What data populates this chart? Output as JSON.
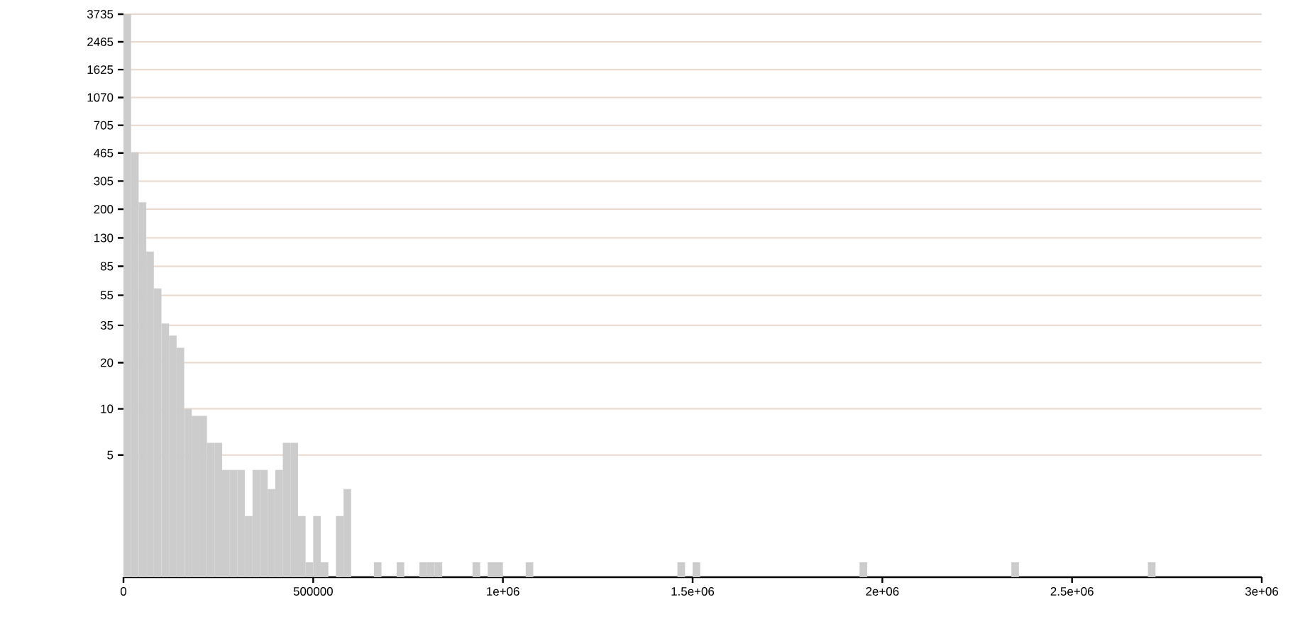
{
  "chart_data": {
    "type": "histogram",
    "color": "#cccccc",
    "grid": "y",
    "log": true,
    "bins": [
      0,
      20000,
      40000,
      60000,
      80000,
      100000,
      120000,
      140000,
      160000,
      180000,
      200000,
      220000,
      240000,
      260000,
      280000,
      300000,
      320000,
      340000,
      360000,
      380000,
      400000,
      420000,
      440000,
      460000,
      480000,
      500000,
      520000,
      540000,
      560000,
      580000,
      600000,
      620000,
      640000,
      660000,
      680000,
      700000,
      720000,
      740000,
      760000,
      780000,
      800000,
      820000,
      840000,
      860000,
      880000,
      900000,
      920000,
      940000,
      960000,
      980000,
      1000000,
      1020000,
      1040000,
      1060000,
      1080000,
      1100000,
      1120000,
      1140000,
      1160000,
      1180000,
      1200000,
      1220000,
      1240000,
      1260000,
      1280000,
      1300000,
      1320000,
      1340000,
      1360000,
      1380000,
      1400000,
      1420000,
      1440000,
      1460000,
      1480000,
      1500000,
      1520000,
      1540000,
      1560000,
      1580000,
      1600000,
      1620000,
      1640000,
      1660000,
      1680000,
      1700000,
      1720000,
      1740000,
      1760000,
      1780000,
      1800000,
      1820000,
      1840000,
      1860000,
      1880000,
      1900000,
      1920000,
      1940000,
      1960000,
      1980000,
      2000000,
      2020000,
      2040000,
      2060000,
      2080000,
      2100000,
      2120000,
      2140000,
      2160000,
      2180000,
      2200000,
      2220000,
      2240000,
      2260000,
      2280000,
      2300000,
      2320000,
      2340000,
      2360000,
      2380000,
      2400000,
      2420000,
      2440000,
      2460000,
      2480000,
      2500000,
      2520000,
      2540000,
      2560000,
      2580000,
      2600000,
      2620000,
      2640000,
      2660000,
      2680000,
      2700000,
      2720000
    ],
    "values": [
      3735,
      470,
      222,
      106,
      61,
      36,
      30,
      25,
      10,
      9,
      9,
      6,
      6,
      4,
      4,
      4,
      2,
      4,
      4,
      3,
      4,
      6,
      6,
      2,
      1,
      2,
      1,
      null,
      2,
      3,
      null,
      null,
      null,
      1,
      null,
      null,
      1,
      null,
      null,
      1,
      1,
      1,
      null,
      null,
      null,
      null,
      1,
      null,
      1,
      1,
      null,
      null,
      null,
      1,
      null,
      null,
      null,
      null,
      null,
      null,
      null,
      null,
      null,
      null,
      null,
      null,
      null,
      null,
      null,
      null,
      null,
      null,
      null,
      1,
      null,
      1,
      null,
      null,
      null,
      null,
      null,
      null,
      null,
      null,
      null,
      null,
      null,
      null,
      null,
      null,
      null,
      null,
      null,
      null,
      null,
      null,
      null,
      1,
      null,
      null,
      null,
      null,
      null,
      null,
      null,
      null,
      null,
      null,
      null,
      null,
      null,
      null,
      null,
      null,
      null,
      null,
      null,
      1,
      null,
      null,
      null,
      null,
      null,
      null,
      null,
      null,
      null,
      null,
      null,
      null,
      null,
      null,
      null,
      null,
      null,
      1
    ],
    "xlim": [
      0,
      3000000
    ],
    "ylim": [
      0.8,
      3735
    ],
    "xticks": [
      0,
      500000,
      {
        "value": 1000000,
        "label": "1e+06"
      },
      {
        "value": 1500000,
        "label": "1.5e+06"
      },
      {
        "value": 2000000,
        "label": "2e+06"
      },
      {
        "value": 2500000,
        "label": "2.5e+06"
      },
      {
        "value": 3000000,
        "label": "3e+06"
      }
    ],
    "yticks": [
      5,
      10,
      20,
      35,
      55,
      85,
      130,
      200,
      305,
      465,
      705,
      1070,
      1625,
      2465,
      3735
    ]
  }
}
